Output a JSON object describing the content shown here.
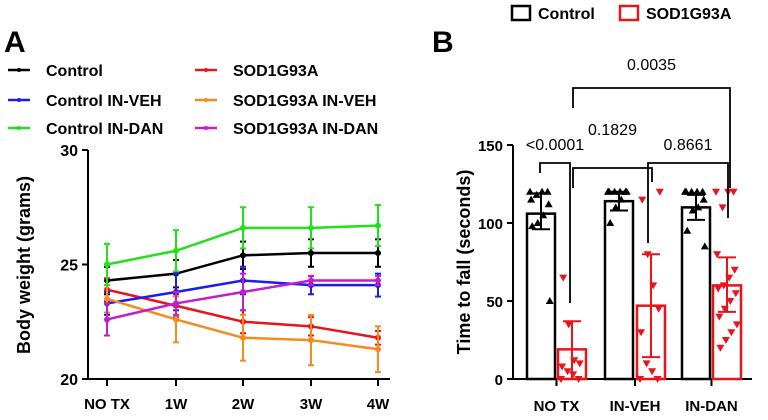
{
  "chart_data": [
    {
      "panel": "A",
      "type": "line",
      "xlabel": "",
      "ylabel": "Body weight (grams)",
      "categories": [
        "NO TX",
        "1W",
        "2W",
        "3W",
        "4W"
      ],
      "ylim": [
        20,
        30
      ],
      "yticks": [
        20,
        25,
        30
      ],
      "legend": "top-left",
      "series": [
        {
          "name": "Control",
          "color": "#000000",
          "values": [
            24.3,
            24.6,
            25.4,
            25.5,
            25.5
          ],
          "err": [
            0.6,
            0.6,
            0.6,
            0.6,
            0.6
          ]
        },
        {
          "name": "SOD1G93A",
          "color": "#e8141b",
          "values": [
            23.9,
            23.2,
            22.5,
            22.3,
            21.8
          ],
          "err": [
            0.5,
            0.5,
            0.5,
            0.4,
            0.3
          ]
        },
        {
          "name": "Control IN-VEH",
          "color": "#1c1cf0",
          "values": [
            23.3,
            23.8,
            24.3,
            24.1,
            24.1
          ],
          "err": [
            0.5,
            0.8,
            0.6,
            0.4,
            0.5
          ]
        },
        {
          "name": "SOD1G93A IN-VEH",
          "color": "#f58a1f",
          "values": [
            23.5,
            22.6,
            21.8,
            21.7,
            21.3
          ],
          "err": [
            0.6,
            1.0,
            1.0,
            1.1,
            1.0
          ]
        },
        {
          "name": "Control IN-DAN",
          "color": "#22e01a",
          "values": [
            25.0,
            25.6,
            26.6,
            26.6,
            26.7
          ],
          "err": [
            0.9,
            0.9,
            0.9,
            0.9,
            0.9
          ]
        },
        {
          "name": "SOD1G93A IN-DAN",
          "color": "#c21fc9",
          "values": [
            22.6,
            23.3,
            23.8,
            24.3,
            24.3
          ],
          "err": [
            0.7,
            0.5,
            0.8,
            0.2,
            0.2
          ]
        }
      ]
    },
    {
      "panel": "B",
      "type": "bar",
      "xlabel": "",
      "ylabel": "Time to fall (seconds)",
      "categories": [
        "NO TX",
        "IN-VEH",
        "IN-DAN"
      ],
      "ylim": [
        0,
        150
      ],
      "yticks": [
        0,
        50,
        100,
        150
      ],
      "legend": "top-right",
      "series": [
        {
          "name": "Control",
          "color": "#000000",
          "values": [
            106,
            114,
            110
          ],
          "err_low": [
            96,
            108,
            102
          ],
          "err_high": [
            119,
            120,
            118
          ],
          "points": [
            [
              120,
              120,
              120,
              118,
              115,
              112,
              105,
              100,
              98,
              50
            ],
            [
              120,
              120,
              120,
              120,
              120,
              120,
              115,
              110,
              100
            ],
            [
              120,
              120,
              120,
              120,
              120,
              115,
              110,
              108,
              95,
              85
            ]
          ]
        },
        {
          "name": "SOD1G93A",
          "color": "#e8141b",
          "values": [
            19,
            47,
            60
          ],
          "err_low": [
            0,
            14,
            43
          ],
          "err_high": [
            37,
            80,
            78
          ],
          "points": [
            [
              0,
              0,
              3,
              5,
              8,
              10,
              12,
              35,
              65
            ],
            [
              0,
              0,
              5,
              10,
              30,
              45,
              60,
              80,
              115,
              120
            ],
            [
              120,
              120,
              120,
              110,
              80,
              70,
              65,
              60,
              58,
              55,
              50,
              45,
              40,
              35,
              30,
              25,
              20
            ]
          ]
        }
      ],
      "comparisons": [
        {
          "label": "<0.0001",
          "from": "NO TX Control",
          "to": "NO TX SOD1G93A"
        },
        {
          "label": "0.8661",
          "from": "IN-VEH SOD1G93A",
          "to": "IN-DAN SOD1G93A"
        },
        {
          "label": "0.1829",
          "from": "NO TX SOD1G93A",
          "to": "IN-VEH SOD1G93A"
        },
        {
          "label": "0.0035",
          "from": "NO TX SOD1G93A",
          "to": "IN-DAN SOD1G93A"
        }
      ]
    }
  ],
  "panel_labels": {
    "a": "A",
    "b": "B"
  }
}
